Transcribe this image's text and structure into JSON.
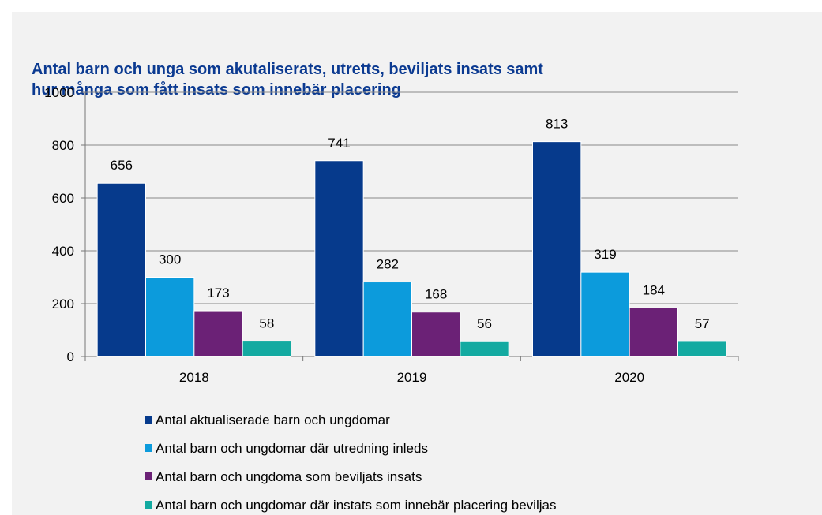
{
  "chart_data": {
    "type": "bar",
    "title": [
      "Antal barn och unga som akutaliserats, utretts, beviljats insats samt",
      "hur många som fått insats som innebär placering"
    ],
    "categories": [
      "2018",
      "2019",
      "2020"
    ],
    "series": [
      {
        "name": "Antal aktualiserade barn och ungdomar",
        "color": "#063a8c",
        "values": [
          656,
          741,
          813
        ]
      },
      {
        "name": "Antal barn och ungdomar där utredning inleds",
        "color": "#0c9bdc",
        "values": [
          300,
          282,
          319
        ]
      },
      {
        "name": "Antal barn och ungdoma som beviljats insats",
        "color": "#6b2176",
        "values": [
          173,
          168,
          184
        ]
      },
      {
        "name": "Antal barn och ungdomar där instats som innebär placering beviljas",
        "color": "#13aaa1",
        "values": [
          58,
          56,
          57
        ]
      }
    ],
    "ylim": [
      0,
      1000
    ],
    "yticks": [
      0,
      200,
      400,
      600,
      800,
      1000
    ],
    "grid": true,
    "legend": "bottom"
  }
}
